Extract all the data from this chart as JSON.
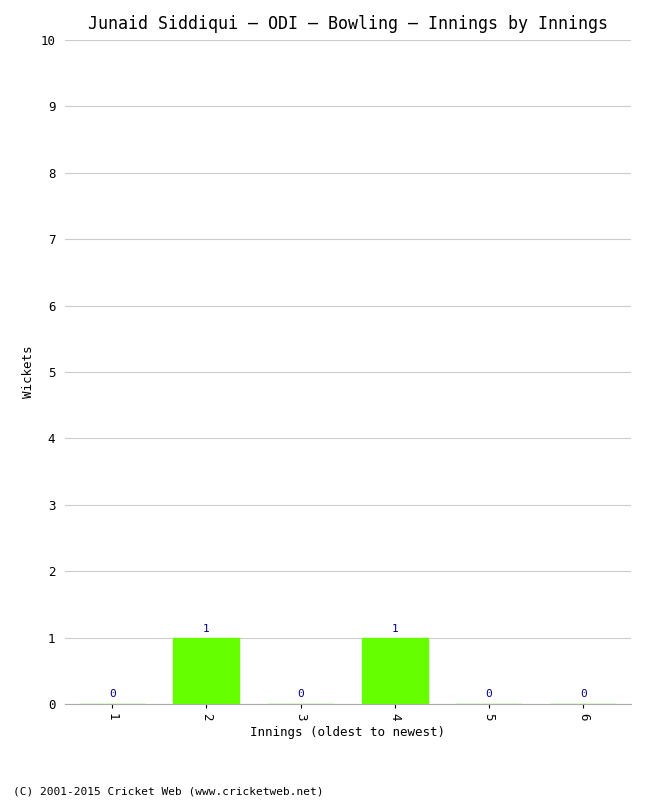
{
  "title": "Junaid Siddiqui – ODI – Bowling – Innings by Innings",
  "xlabel": "Innings (oldest to newest)",
  "ylabel": "Wickets",
  "categories": [
    1,
    2,
    3,
    4,
    5,
    6
  ],
  "values": [
    0,
    1,
    0,
    1,
    0,
    0
  ],
  "bar_color": "#66ff00",
  "label_color": "#000080",
  "ylim": [
    0,
    10
  ],
  "yticks": [
    0,
    1,
    2,
    3,
    4,
    5,
    6,
    7,
    8,
    9,
    10
  ],
  "background_color": "#ffffff",
  "grid_color": "#cccccc",
  "footer": "(C) 2001-2015 Cricket Web (www.cricketweb.net)",
  "title_fontsize": 12,
  "axis_label_fontsize": 9,
  "tick_fontsize": 9,
  "annotation_fontsize": 8,
  "footer_fontsize": 8,
  "bar_width": 0.7
}
